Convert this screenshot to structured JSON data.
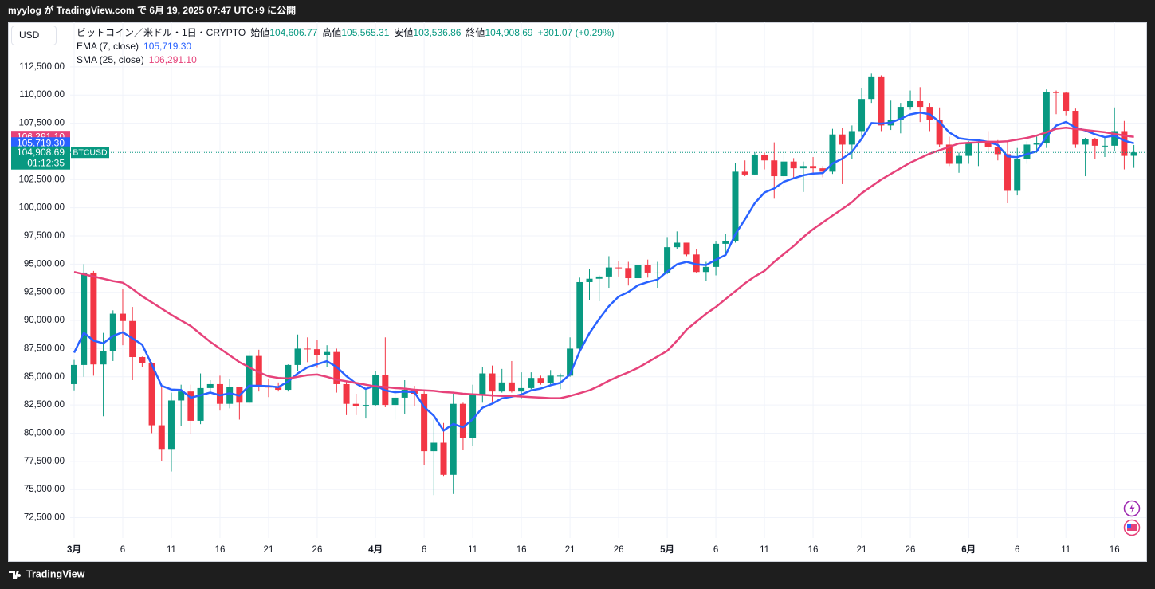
{
  "header": {
    "text": "myylog が TradingView.com で 6月 19, 2025 07:47 UTC+9 に公開"
  },
  "footer": {
    "brand": "TradingView"
  },
  "currency_button": "USD",
  "chart_data": {
    "type": "candlestick",
    "title": "ビットコイン／米ドル・1日・CRYPTO",
    "legend": {
      "open_label": "始値",
      "open": "104,606.77",
      "high_label": "高値",
      "high": "105,565.31",
      "low_label": "安値",
      "low": "103,536.86",
      "close_label": "終値",
      "close": "104,908.69",
      "change": "+301.07 (+0.29%)"
    },
    "x": [
      "2025-03-01",
      "2025-03-02",
      "2025-03-03",
      "2025-03-04",
      "2025-03-05",
      "2025-03-06",
      "2025-03-07",
      "2025-03-08",
      "2025-03-09",
      "2025-03-10",
      "2025-03-11",
      "2025-03-12",
      "2025-03-13",
      "2025-03-14",
      "2025-03-15",
      "2025-03-16",
      "2025-03-17",
      "2025-03-18",
      "2025-03-19",
      "2025-03-20",
      "2025-03-21",
      "2025-03-22",
      "2025-03-23",
      "2025-03-24",
      "2025-03-25",
      "2025-03-26",
      "2025-03-27",
      "2025-03-28",
      "2025-03-29",
      "2025-03-30",
      "2025-03-31",
      "2025-04-01",
      "2025-04-02",
      "2025-04-03",
      "2025-04-04",
      "2025-04-05",
      "2025-04-06",
      "2025-04-07",
      "2025-04-08",
      "2025-04-09",
      "2025-04-10",
      "2025-04-11",
      "2025-04-12",
      "2025-04-13",
      "2025-04-14",
      "2025-04-15",
      "2025-04-16",
      "2025-04-17",
      "2025-04-18",
      "2025-04-19",
      "2025-04-20",
      "2025-04-21",
      "2025-04-22",
      "2025-04-23",
      "2025-04-24",
      "2025-04-25",
      "2025-04-26",
      "2025-04-27",
      "2025-04-28",
      "2025-04-29",
      "2025-04-30",
      "2025-05-01",
      "2025-05-02",
      "2025-05-03",
      "2025-05-04",
      "2025-05-05",
      "2025-05-06",
      "2025-05-07",
      "2025-05-08",
      "2025-05-09",
      "2025-05-10",
      "2025-05-11",
      "2025-05-12",
      "2025-05-13",
      "2025-05-14",
      "2025-05-15",
      "2025-05-16",
      "2025-05-17",
      "2025-05-18",
      "2025-05-19",
      "2025-05-20",
      "2025-05-21",
      "2025-05-22",
      "2025-05-23",
      "2025-05-24",
      "2025-05-25",
      "2025-05-26",
      "2025-05-27",
      "2025-05-28",
      "2025-05-29",
      "2025-05-30",
      "2025-05-31",
      "2025-06-01",
      "2025-06-02",
      "2025-06-03",
      "2025-06-04",
      "2025-06-05",
      "2025-06-06",
      "2025-06-07",
      "2025-06-08",
      "2025-06-09",
      "2025-06-10",
      "2025-06-11",
      "2025-06-12",
      "2025-06-13",
      "2025-06-14",
      "2025-06-15",
      "2025-06-16",
      "2025-06-17",
      "2025-06-18"
    ],
    "xlim": [
      "2025-02-24",
      "2025-06-20"
    ],
    "xticks": [
      {
        "value": "2025-03-01",
        "label": "3月"
      },
      {
        "value": "2025-03-06",
        "label": "6"
      },
      {
        "value": "2025-03-11",
        "label": "11"
      },
      {
        "value": "2025-03-16",
        "label": "16"
      },
      {
        "value": "2025-03-21",
        "label": "21"
      },
      {
        "value": "2025-03-26",
        "label": "26"
      },
      {
        "value": "2025-04-01",
        "label": "4月"
      },
      {
        "value": "2025-04-06",
        "label": "6"
      },
      {
        "value": "2025-04-11",
        "label": "11"
      },
      {
        "value": "2025-04-16",
        "label": "16"
      },
      {
        "value": "2025-04-21",
        "label": "21"
      },
      {
        "value": "2025-04-26",
        "label": "26"
      },
      {
        "value": "2025-05-01",
        "label": "5月"
      },
      {
        "value": "2025-05-06",
        "label": "6"
      },
      {
        "value": "2025-05-11",
        "label": "11"
      },
      {
        "value": "2025-05-16",
        "label": "16"
      },
      {
        "value": "2025-05-21",
        "label": "21"
      },
      {
        "value": "2025-05-26",
        "label": "26"
      },
      {
        "value": "2025-06-01",
        "label": "6月"
      },
      {
        "value": "2025-06-06",
        "label": "6"
      },
      {
        "value": "2025-06-11",
        "label": "11"
      },
      {
        "value": "2025-06-16",
        "label": "16"
      }
    ],
    "ylim": [
      70700,
      116450
    ],
    "yticks": [
      {
        "value": 72500,
        "label": "72,500.00"
      },
      {
        "value": 75000,
        "label": "75,000.00"
      },
      {
        "value": 77500,
        "label": "77,500.00"
      },
      {
        "value": 80000,
        "label": "80,000.00"
      },
      {
        "value": 82500,
        "label": "82,500.00"
      },
      {
        "value": 85000,
        "label": "85,000.00"
      },
      {
        "value": 87500,
        "label": "87,500.00"
      },
      {
        "value": 90000,
        "label": "90,000.00"
      },
      {
        "value": 92500,
        "label": "92,500.00"
      },
      {
        "value": 95000,
        "label": "95,000.00"
      },
      {
        "value": 97500,
        "label": "97,500.00"
      },
      {
        "value": 100000,
        "label": "100,000.00"
      },
      {
        "value": 102500,
        "label": "102,500.00"
      },
      {
        "value": 105000,
        "label": "105,000.00"
      },
      {
        "value": 107500,
        "label": "107,500.00"
      },
      {
        "value": 110000,
        "label": "110,000.00"
      },
      {
        "value": 112500,
        "label": "112,500.00"
      }
    ],
    "grid": true,
    "ohlc": {
      "name": "BTCUSD",
      "up_color": "#089981",
      "down_color": "#f23645",
      "open": [
        84350,
        86050,
        94250,
        86100,
        87250,
        90600,
        89950,
        86750,
        86200,
        80700,
        78600,
        82900,
        83700,
        81100,
        84000,
        84350,
        82600,
        84100,
        82700,
        86850,
        84200,
        84050,
        83850,
        86050,
        87500,
        87450,
        86950,
        87200,
        84350,
        82600,
        82400,
        82500,
        85150,
        82500,
        83150,
        83850,
        83500,
        78400,
        79150,
        76300,
        82600,
        79600,
        83400,
        85300,
        83700,
        84500,
        83700,
        84000,
        84900,
        84450,
        85100,
        85100,
        87500,
        93400,
        93700,
        93900,
        94700,
        94650,
        93750,
        94950,
        94250,
        94250,
        96500,
        96900,
        95850,
        94300,
        94750,
        96800,
        97050,
        103200,
        102950,
        104700,
        104200,
        102800,
        104100,
        103500,
        103700,
        103500,
        103200,
        106500,
        105600,
        106800,
        109650,
        111650,
        107300,
        107800,
        108950,
        109450,
        108950,
        107800,
        105600,
        103900,
        104600,
        105700,
        105800,
        105400,
        104750,
        101500,
        104300,
        105600,
        105700,
        110250,
        110200,
        108600,
        105600,
        106100,
        105500,
        105500,
        106800,
        104606.77
      ],
      "high": [
        86500,
        95000,
        94400,
        88900,
        90900,
        92800,
        91200,
        86800,
        86300,
        84100,
        83600,
        84300,
        84300,
        85300,
        84700,
        85100,
        84800,
        84100,
        87300,
        87400,
        84800,
        84500,
        86100,
        88750,
        88500,
        88300,
        87800,
        87500,
        84600,
        83500,
        83900,
        85500,
        88500,
        83900,
        84700,
        84200,
        83800,
        81200,
        80900,
        83500,
        82700,
        84300,
        85900,
        86000,
        85700,
        86400,
        85400,
        85400,
        85100,
        85600,
        85300,
        88500,
        93800,
        94600,
        94000,
        95700,
        95300,
        95200,
        95600,
        95400,
        95200,
        97400,
        97900,
        96900,
        96300,
        95200,
        97000,
        97700,
        104000,
        104200,
        104900,
        104900,
        105800,
        104800,
        104400,
        104100,
        104500,
        103700,
        107000,
        107100,
        107300,
        110600,
        111900,
        111750,
        109500,
        109300,
        110400,
        110700,
        109300,
        108900,
        106300,
        104900,
        105900,
        105900,
        106800,
        106000,
        105900,
        105300,
        105900,
        106300,
        110500,
        110400,
        110300,
        108800,
        106200,
        106200,
        106200,
        108900,
        107700,
        105565.31
      ],
      "low": [
        83800,
        85000,
        85100,
        81500,
        86400,
        87800,
        84700,
        85900,
        80000,
        77500,
        76600,
        80600,
        79900,
        80800,
        83600,
        82000,
        82200,
        81200,
        82600,
        83700,
        83200,
        83700,
        83700,
        85500,
        86300,
        85800,
        85900,
        83600,
        81600,
        81600,
        81300,
        82400,
        82300,
        81200,
        81700,
        82400,
        77200,
        74500,
        76200,
        74600,
        78500,
        78900,
        82700,
        82800,
        83600,
        83600,
        83100,
        83900,
        84300,
        84300,
        83900,
        85000,
        87100,
        91800,
        91700,
        92900,
        93900,
        93100,
        92800,
        93800,
        92900,
        94100,
        96300,
        95700,
        94200,
        93500,
        94000,
        95800,
        96900,
        102800,
        102900,
        103400,
        100800,
        101500,
        102600,
        101400,
        103100,
        102700,
        103000,
        102100,
        104300,
        106100,
        109300,
        106800,
        106900,
        106600,
        108700,
        107600,
        106800,
        105400,
        103700,
        103100,
        103900,
        103700,
        104900,
        104200,
        100400,
        101100,
        103900,
        105000,
        105300,
        108300,
        108200,
        105300,
        102800,
        104300,
        104500,
        105000,
        103400,
        103536.86
      ],
      "close": [
        86050,
        94250,
        86100,
        87250,
        90600,
        89950,
        86750,
        86200,
        80700,
        78600,
        82900,
        83700,
        81100,
        84000,
        84350,
        82600,
        84100,
        82700,
        86850,
        84200,
        84050,
        83850,
        86050,
        87500,
        87450,
        86950,
        87200,
        84350,
        82600,
        82400,
        82500,
        85150,
        82500,
        83150,
        83850,
        83500,
        78400,
        79150,
        76300,
        82600,
        79600,
        83400,
        85300,
        83700,
        84500,
        83700,
        84000,
        84900,
        84450,
        85100,
        85100,
        87500,
        93400,
        93700,
        93900,
        94700,
        94650,
        93750,
        94950,
        94250,
        94250,
        96500,
        96900,
        95850,
        94300,
        94750,
        96800,
        97050,
        103200,
        102950,
        104700,
        104200,
        102800,
        104100,
        103500,
        103700,
        103500,
        103200,
        106500,
        105600,
        106800,
        109650,
        111650,
        107300,
        107800,
        108950,
        109450,
        108950,
        107800,
        105600,
        103900,
        104600,
        105700,
        105800,
        105400,
        104750,
        101500,
        104300,
        105600,
        105700,
        110250,
        110200,
        108600,
        105600,
        106100,
        105500,
        105500,
        106800,
        104600,
        104908.69
      ]
    },
    "lines": [
      {
        "name": "EMA (7, close)",
        "color": "#2962ff",
        "value_label": "105,719.30",
        "values": [
          87137,
          88915,
          88211,
          87971,
          88628,
          88958,
          88406,
          87855,
          86066,
          84200,
          83875,
          83831,
          83148,
          83361,
          83608,
          83356,
          83542,
          83331,
          84211,
          84208,
          84168,
          84088,
          84579,
          85309,
          85844,
          86121,
          86391,
          85881,
          85061,
          84396,
          83922,
          84229,
          83797,
          83635,
          83689,
          83642,
          82332,
          81537,
          80228,
          80821,
          80516,
          81237,
          82253,
          82615,
          83086,
          83240,
          83430,
          83798,
          83961,
          84246,
          84460,
          85220,
          87265,
          88874,
          90131,
          91273,
          92117,
          92525,
          93131,
          93411,
          93621,
          94341,
          94981,
          95198,
          94973,
          94917,
          95388,
          95804,
          97653,
          98977,
          100408,
          101356,
          101717,
          102313,
          102610,
          102883,
          103037,
          103078,
          103934,
          104351,
          104963,
          106135,
          107514,
          107460,
          107545,
          107896,
          108285,
          108451,
          108288,
          107616,
          106687,
          106165,
          106049,
          105987,
          105840,
          105567,
          104550,
          104487,
          104765,
          104999,
          106312,
          107284,
          107613,
          107110,
          106857,
          106518,
          106263,
          106397,
          105948,
          105719.3
        ]
      },
      {
        "name": "SMA (25, close)",
        "color": "#e6427a",
        "value_label": "106,291.10",
        "values": [
          94300,
          94100,
          93900,
          93700,
          93500,
          93350,
          92800,
          92150,
          91600,
          91050,
          90500,
          90000,
          89500,
          88800,
          88100,
          87500,
          86900,
          86300,
          85850,
          85400,
          85050,
          84900,
          84850,
          85000,
          85150,
          85200,
          85000,
          84750,
          84600,
          84450,
          84300,
          84150,
          84100,
          84000,
          83950,
          83850,
          83800,
          83750,
          83650,
          83600,
          83500,
          83450,
          83400,
          83350,
          83300,
          83300,
          83250,
          83200,
          83150,
          83100,
          83100,
          83300,
          83550,
          83800,
          84200,
          84650,
          85050,
          85400,
          85800,
          86300,
          86800,
          87300,
          88200,
          89200,
          89900,
          90600,
          91200,
          91900,
          92600,
          93300,
          93900,
          94400,
          95200,
          95900,
          96600,
          97400,
          98100,
          98700,
          99300,
          99900,
          100500,
          101300,
          101900,
          102500,
          103000,
          103500,
          104000,
          104400,
          104800,
          105100,
          105400,
          105700,
          105750,
          105800,
          105850,
          105850,
          105900,
          106050,
          106200,
          106400,
          106700,
          107000,
          107100,
          107000,
          106900,
          106800,
          106700,
          106550,
          106400,
          106291.1
        ]
      }
    ],
    "price_tags": [
      {
        "value": 106291.1,
        "label": "106,291.10",
        "color": "#e6427a"
      },
      {
        "value": 105719.3,
        "label": "105,719.30",
        "color": "#2962ff"
      },
      {
        "value": 104908.69,
        "label": "104,908.69",
        "color": "#089981"
      }
    ],
    "countdown": "01:12:35"
  }
}
